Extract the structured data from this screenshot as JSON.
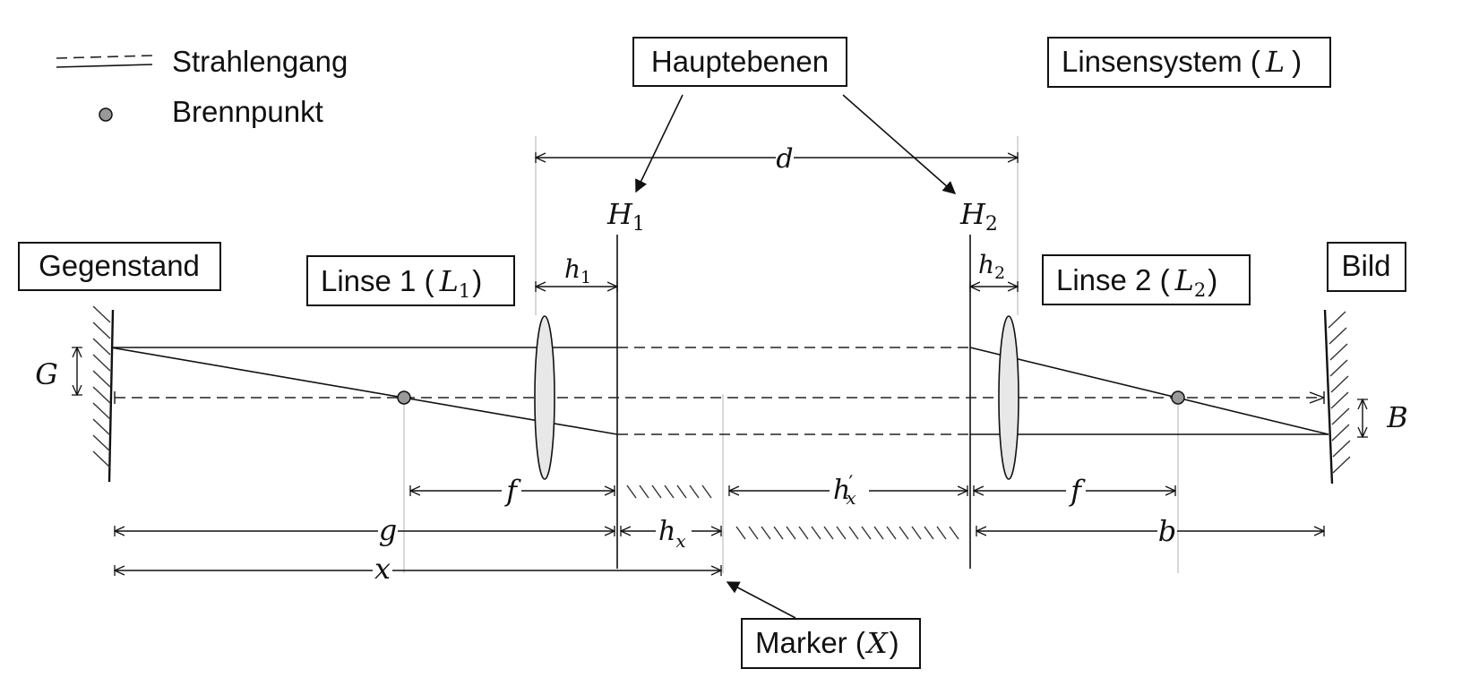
{
  "legend": {
    "ray_path": "Strahlengang",
    "focal_point": "Brennpunkt"
  },
  "boxes": {
    "principal_planes": "Hauptebenen",
    "lens_system_text": "Linsensystem (",
    "lens_system_sym": "L",
    "lens_system_close": ")",
    "object": "Gegenstand",
    "lens1_text": "Linse 1 (",
    "lens1_sym": "L",
    "lens1_sub": "1",
    "lens1_close": ")",
    "lens2_text": "Linse 2 (",
    "lens2_sym": "L",
    "lens2_sub": "2",
    "lens2_close": ")",
    "image": "Bild",
    "marker_text": "Marker (",
    "marker_sym": "X",
    "marker_close": ")"
  },
  "symbols": {
    "d": "d",
    "H": "H",
    "H1_sub": "1",
    "H2_sub": "2",
    "h": "h",
    "h1_sub": "1",
    "h2_sub": "2",
    "G": "G",
    "B": "B",
    "f_left": "f",
    "f_right": "f",
    "hx_prime": "h",
    "hx_prime_mark": "′",
    "x_sub": "x",
    "hx": "h",
    "g": "g",
    "b": "b",
    "x": "x"
  },
  "colors": {
    "line": "#111111",
    "focal_point_fill": "#999999",
    "lens_fill": "#e8e8e8",
    "guide": "#bdbdbd"
  }
}
